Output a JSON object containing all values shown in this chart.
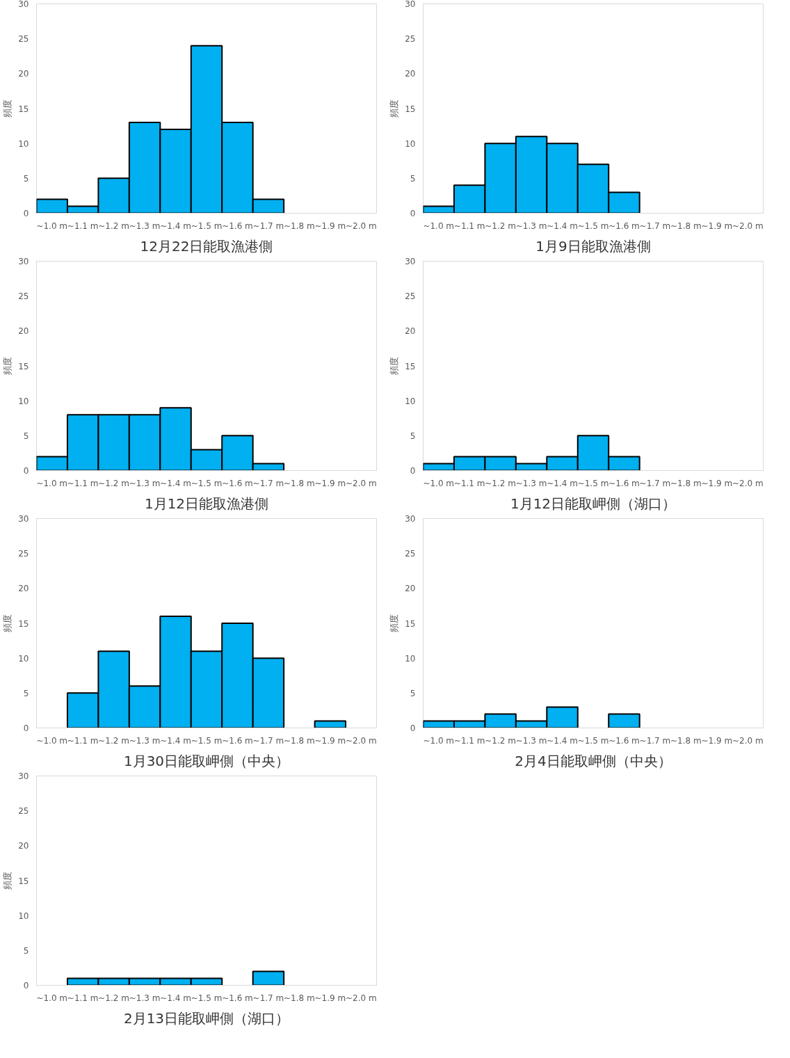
{
  "chart_data": [
    {
      "type": "bar",
      "title": "12月22日能取漁港側",
      "ylabel": "頻度",
      "categories": [
        "~1.0 m",
        "~1.1 m",
        "~1.2 m",
        "~1.3 m",
        "~1.4 m",
        "~1.5 m",
        "~1.6 m",
        "~1.7 m",
        "~1.8 m",
        "~1.9 m",
        "~2.0 m"
      ],
      "values": [
        2,
        1,
        5,
        13,
        12,
        24,
        13,
        2,
        0,
        0,
        0
      ],
      "color": "#00b0f0",
      "ylim": [
        0,
        30
      ],
      "yticks": [
        0,
        5,
        10,
        15,
        20,
        25,
        30
      ],
      "grid": false
    },
    {
      "type": "bar",
      "title": "1月9日能取漁港側",
      "ylabel": "頻度",
      "categories": [
        "~1.0 m",
        "~1.1 m",
        "~1.2 m",
        "~1.3 m",
        "~1.4 m",
        "~1.5 m",
        "~1.6 m",
        "~1.7 m",
        "~1.8 m",
        "~1.9 m",
        "~2.0 m"
      ],
      "values": [
        1,
        4,
        10,
        11,
        10,
        7,
        3,
        0,
        0,
        0,
        0
      ],
      "color": "#00b0f0",
      "ylim": [
        0,
        30
      ],
      "yticks": [
        0,
        5,
        10,
        15,
        20,
        25,
        30
      ],
      "grid": false
    },
    {
      "type": "bar",
      "title": "1月12日能取漁港側",
      "ylabel": "頻度",
      "categories": [
        "~1.0 m",
        "~1.1 m",
        "~1.2 m",
        "~1.3 m",
        "~1.4 m",
        "~1.5 m",
        "~1.6 m",
        "~1.7 m",
        "~1.8 m",
        "~1.9 m",
        "~2.0 m"
      ],
      "values": [
        2,
        8,
        8,
        8,
        9,
        3,
        5,
        1,
        0,
        0,
        0
      ],
      "color": "#00b0f0",
      "ylim": [
        0,
        30
      ],
      "yticks": [
        0,
        5,
        10,
        15,
        20,
        25,
        30
      ],
      "grid": false
    },
    {
      "type": "bar",
      "title": "1月12日能取岬側（湖口）",
      "ylabel": "頻度",
      "categories": [
        "~1.0 m",
        "~1.1 m",
        "~1.2 m",
        "~1.3 m",
        "~1.4 m",
        "~1.5 m",
        "~1.6 m",
        "~1.7 m",
        "~1.8 m",
        "~1.9 m",
        "~2.0 m"
      ],
      "values": [
        1,
        2,
        2,
        1,
        2,
        5,
        2,
        0,
        0,
        0,
        0
      ],
      "color": "#00b0f0",
      "ylim": [
        0,
        30
      ],
      "yticks": [
        0,
        5,
        10,
        15,
        20,
        25,
        30
      ],
      "grid": false
    },
    {
      "type": "bar",
      "title": "1月30日能取岬側（中央）",
      "ylabel": "頻度",
      "categories": [
        "~1.0 m",
        "~1.1 m",
        "~1.2 m",
        "~1.3 m",
        "~1.4 m",
        "~1.5 m",
        "~1.6 m",
        "~1.7 m",
        "~1.8 m",
        "~1.9 m",
        "~2.0 m"
      ],
      "values": [
        0,
        5,
        11,
        6,
        16,
        11,
        15,
        10,
        0,
        1,
        0
      ],
      "color": "#00b0f0",
      "ylim": [
        0,
        30
      ],
      "yticks": [
        0,
        5,
        10,
        15,
        20,
        25,
        30
      ],
      "grid": false
    },
    {
      "type": "bar",
      "title": "2月4日能取岬側（中央）",
      "ylabel": "頻度",
      "categories": [
        "~1.0 m",
        "~1.1 m",
        "~1.2 m",
        "~1.3 m",
        "~1.4 m",
        "~1.5 m",
        "~1.6 m",
        "~1.7 m",
        "~1.8 m",
        "~1.9 m",
        "~2.0 m"
      ],
      "values": [
        1,
        1,
        2,
        1,
        3,
        0,
        2,
        0,
        0,
        0,
        0
      ],
      "color": "#00b0f0",
      "ylim": [
        0,
        30
      ],
      "yticks": [
        0,
        5,
        10,
        15,
        20,
        25,
        30
      ],
      "grid": false
    },
    {
      "type": "bar",
      "title": "2月13日能取岬側（湖口）",
      "ylabel": "頻度",
      "categories": [
        "~1.0 m",
        "~1.1 m",
        "~1.2 m",
        "~1.3 m",
        "~1.4 m",
        "~1.5 m",
        "~1.6 m",
        "~1.7 m",
        "~1.8 m",
        "~1.9 m",
        "~2.0 m"
      ],
      "values": [
        0,
        1,
        1,
        1,
        1,
        1,
        0,
        2,
        0,
        0,
        0
      ],
      "color": "#00b0f0",
      "ylim": [
        0,
        30
      ],
      "yticks": [
        0,
        5,
        10,
        15,
        20,
        25,
        30
      ],
      "grid": false
    }
  ]
}
